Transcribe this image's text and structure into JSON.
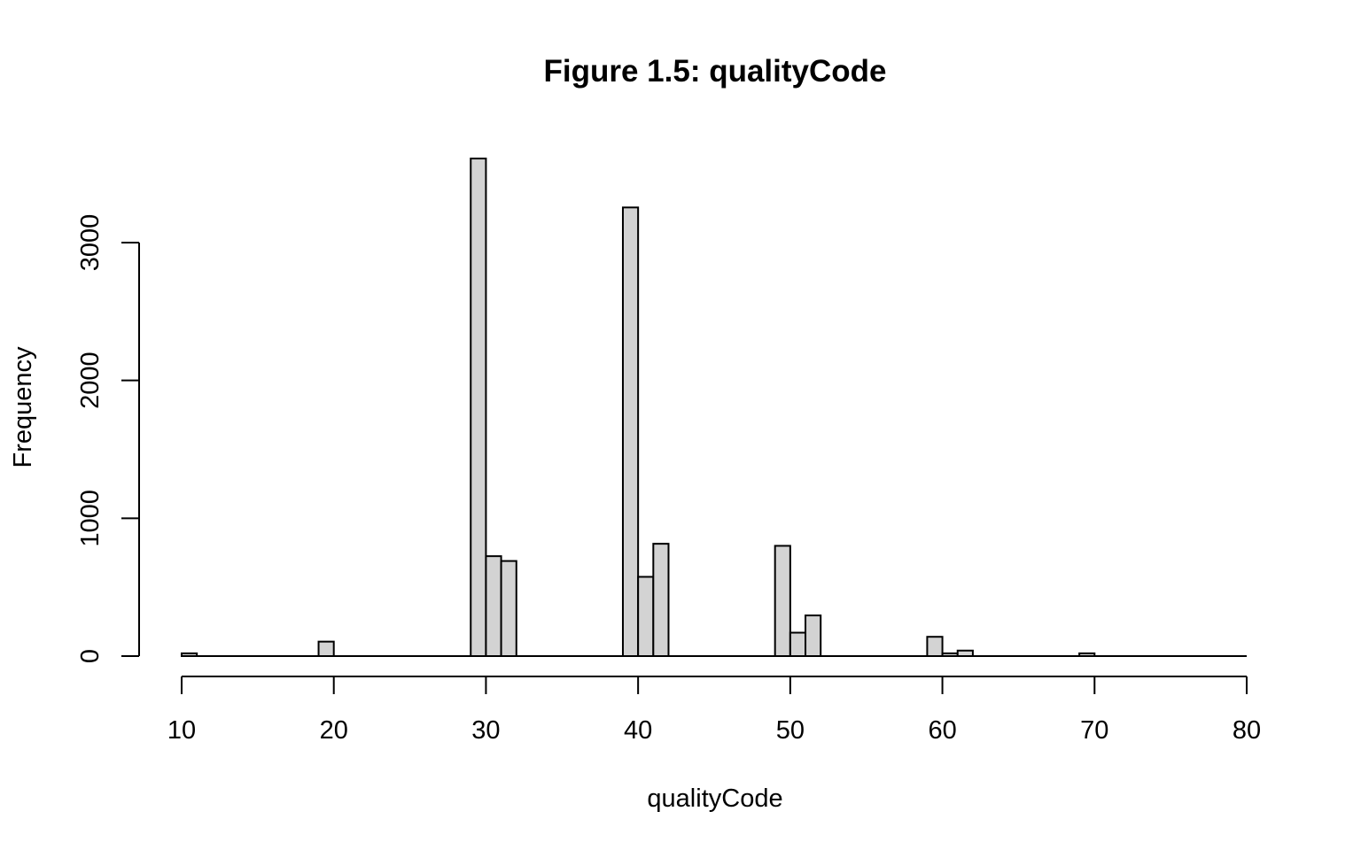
{
  "chart_data": {
    "type": "bar",
    "title": "Figure 1.5: qualityCode",
    "xlabel": "qualityCode",
    "ylabel": "Frequency",
    "xlim": [
      10,
      80
    ],
    "ylim": [
      0,
      3600
    ],
    "x_ticks": [
      "10",
      "20",
      "30",
      "40",
      "50",
      "60",
      "70",
      "80"
    ],
    "y_ticks": [
      "0",
      "1000",
      "2000",
      "3000"
    ],
    "bar_color": "#d3d3d3",
    "bin_width": 1,
    "bins": [
      {
        "x0": 10,
        "x1": 11,
        "count": 20
      },
      {
        "x0": 19,
        "x1": 20,
        "count": 105
      },
      {
        "x0": 29,
        "x1": 30,
        "count": 3610
      },
      {
        "x0": 30,
        "x1": 31,
        "count": 725
      },
      {
        "x0": 31,
        "x1": 32,
        "count": 690
      },
      {
        "x0": 39,
        "x1": 40,
        "count": 3255
      },
      {
        "x0": 40,
        "x1": 41,
        "count": 575
      },
      {
        "x0": 41,
        "x1": 42,
        "count": 815
      },
      {
        "x0": 49,
        "x1": 50,
        "count": 800
      },
      {
        "x0": 50,
        "x1": 51,
        "count": 170
      },
      {
        "x0": 51,
        "x1": 52,
        "count": 295
      },
      {
        "x0": 59,
        "x1": 60,
        "count": 140
      },
      {
        "x0": 60,
        "x1": 61,
        "count": 20
      },
      {
        "x0": 61,
        "x1": 62,
        "count": 40
      },
      {
        "x0": 69,
        "x1": 70,
        "count": 20
      }
    ]
  }
}
